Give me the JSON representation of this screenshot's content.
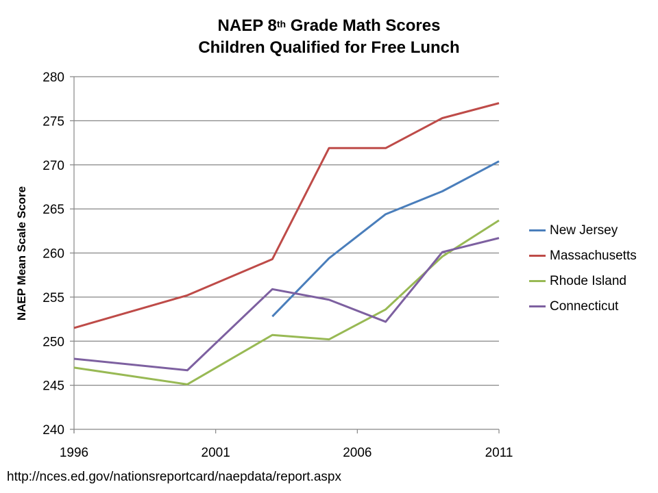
{
  "chart_data": {
    "type": "line",
    "title_line1_main": "NAEP 8",
    "title_line1_sup": "th",
    "title_line1_rest": " Grade Math Scores",
    "title_line2": "Children Qualified for Free Lunch",
    "xlabel": "",
    "ylabel": "NAEP Mean Scale Score",
    "xlim": [
      1996,
      2011
    ],
    "ylim": [
      240,
      280
    ],
    "xticks": [
      1996,
      2001,
      2006,
      2011
    ],
    "yticks": [
      240,
      245,
      250,
      255,
      260,
      265,
      270,
      275,
      280
    ],
    "grid": "horizontal",
    "legend_position": "right",
    "series": [
      {
        "name": "New Jersey",
        "color": "#4a7ebb",
        "x": [
          2003,
          2005,
          2007,
          2009,
          2011
        ],
        "y": [
          252.8,
          259.4,
          264.4,
          267.0,
          270.4
        ]
      },
      {
        "name": "Massachusetts",
        "color": "#be4b48",
        "x": [
          1996,
          2000,
          2003,
          2005,
          2007,
          2009,
          2011
        ],
        "y": [
          251.5,
          255.2,
          259.3,
          271.9,
          271.9,
          275.3,
          277.0
        ]
      },
      {
        "name": "Rhode Island",
        "color": "#98b954",
        "x": [
          1996,
          2000,
          2003,
          2005,
          2007,
          2009,
          2011
        ],
        "y": [
          247.0,
          245.1,
          250.7,
          250.2,
          253.6,
          259.6,
          263.7
        ]
      },
      {
        "name": "Connecticut",
        "color": "#7d60a0",
        "x": [
          1996,
          2000,
          2003,
          2005,
          2007,
          2009,
          2011
        ],
        "y": [
          248.0,
          246.7,
          255.9,
          254.7,
          252.2,
          260.1,
          261.7
        ]
      }
    ]
  },
  "source": "http://nces.ed.gov/nationsreportcard/naepdata/report.aspx"
}
